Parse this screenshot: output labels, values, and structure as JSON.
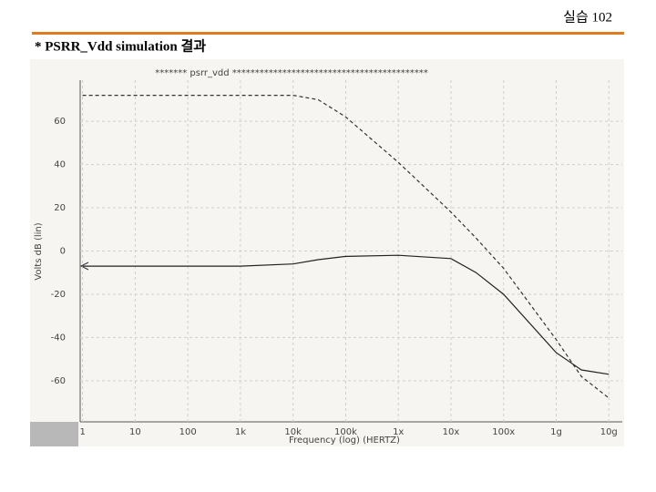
{
  "header": {
    "text": "실습 102"
  },
  "subtitle": "* PSRR_Vdd  simulation 결과",
  "chart_data": {
    "type": "line",
    "title": "******* psrr_vdd *******************************************",
    "x_label": "Frequency (log) (HERTZ)",
    "y_label": "Volts dB (lin)",
    "x": [
      1,
      1000,
      10000,
      30000,
      100000,
      1000000,
      10000000,
      30000000,
      100000000,
      1000000000,
      3000000000,
      10000000000
    ],
    "series": [
      {
        "color": "#333333",
        "dash": true,
        "values": [
          72,
          72,
          72,
          70,
          62,
          41,
          18,
          6,
          -8,
          -41,
          -58,
          -68
        ]
      },
      {
        "color": "#222222",
        "dash": false,
        "values": [
          -7,
          -7,
          -6,
          -4,
          -2.5,
          -2,
          -3.5,
          -10,
          -20,
          -47,
          -55,
          -57
        ]
      }
    ],
    "xlim": [
      0.9,
      18000000000
    ],
    "ylim": [
      -79,
      79
    ],
    "log_x": true,
    "grid": true,
    "xticks": [
      1,
      10,
      100,
      {
        "value": 1000,
        "label": "1k"
      },
      {
        "value": 10000,
        "label": "10k"
      },
      {
        "value": 100000,
        "label": "100k"
      },
      {
        "value": 1000000,
        "label": "1x"
      },
      {
        "value": 10000000,
        "label": "10x"
      },
      {
        "value": 100000000,
        "label": "100x"
      },
      {
        "value": 1000000000,
        "label": "1g"
      },
      {
        "value": 10000000000,
        "label": "10g"
      }
    ],
    "yticks": [
      -60,
      -40,
      -20,
      0,
      20,
      40,
      60
    ]
  }
}
